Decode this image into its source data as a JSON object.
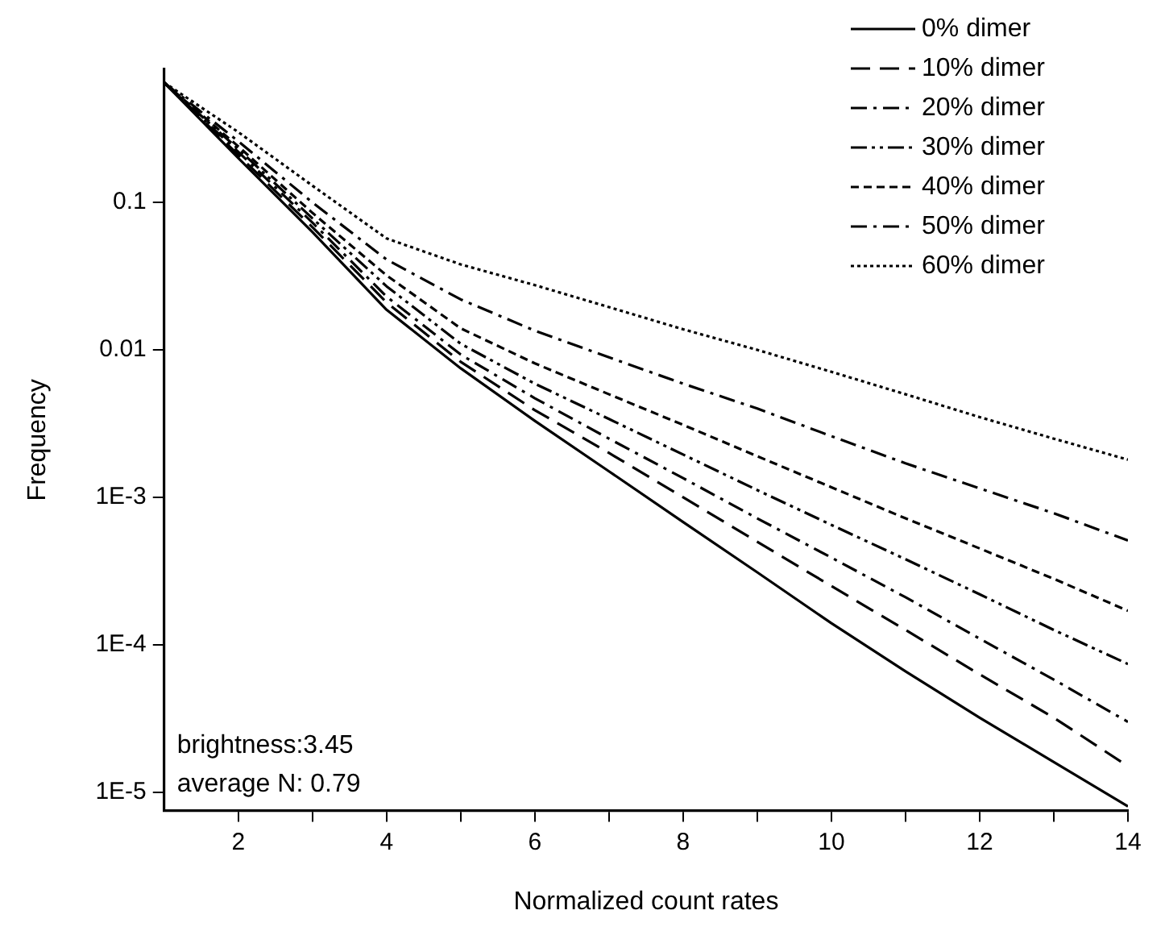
{
  "chart_data": {
    "type": "line",
    "xlabel": "Normalized count rates",
    "ylabel": "Frequency",
    "log": "y",
    "grid": false,
    "legend": "top right",
    "marker": "none",
    "x": [
      1,
      2,
      3,
      4,
      5,
      6,
      7,
      8,
      9,
      10,
      11,
      12,
      13,
      14
    ],
    "xlim": [
      1,
      14
    ],
    "xticks": [
      2,
      {
        "value": 3,
        "label": null
      },
      4,
      {
        "value": 5,
        "label": null
      },
      6,
      {
        "value": 7,
        "label": null
      },
      8,
      {
        "value": 9,
        "label": null
      },
      10,
      {
        "value": 11,
        "label": null
      },
      12,
      {
        "value": 13,
        "label": null
      },
      14
    ],
    "ylim": [
      7.5e-06,
      0.8
    ],
    "yticks": [
      {
        "value": 1e-05,
        "label": "1E-5"
      },
      {
        "value": 0.0001,
        "label": "1E-4"
      },
      {
        "value": 0.001,
        "label": "1E-3"
      },
      0.01,
      0.1
    ],
    "series": [
      {
        "name": "0% dimer",
        "color": "#000000",
        "line_style": "solid",
        "values": [
          0.65,
          0.2,
          0.063,
          0.0187,
          0.0075,
          0.0033,
          0.0015,
          0.00068,
          0.00031,
          0.00014,
          6.6e-05,
          3.2e-05,
          1.6e-05,
          8e-06
        ]
      },
      {
        "name": "10% dimer",
        "color": "#000000",
        "line_style": "dashed",
        "values": [
          0.65,
          0.21,
          0.068,
          0.021,
          0.0083,
          0.0039,
          0.002,
          0.001,
          0.0005,
          0.00025,
          0.000126,
          6.3e-05,
          3.2e-05,
          1.5e-05
        ]
      },
      {
        "name": "20% dimer",
        "color": "#000000",
        "line_style": "dashdot",
        "values": [
          0.65,
          0.22,
          0.073,
          0.023,
          0.0093,
          0.0047,
          0.0025,
          0.00135,
          0.00072,
          0.00039,
          0.00021,
          0.00011,
          5.8e-05,
          3e-05
        ]
      },
      {
        "name": "30% dimer",
        "color": "#000000",
        "line_style": "dashdotdot",
        "values": [
          0.65,
          0.23,
          0.078,
          0.027,
          0.011,
          0.0059,
          0.0034,
          0.00195,
          0.00112,
          0.00065,
          0.00038,
          0.00022,
          0.000126,
          7.4e-05
        ]
      },
      {
        "name": "40% dimer",
        "color": "#000000",
        "line_style": "shortdash",
        "values": [
          0.65,
          0.24,
          0.085,
          0.032,
          0.014,
          0.0081,
          0.005,
          0.0031,
          0.0019,
          0.00117,
          0.00072,
          0.00045,
          0.00028,
          0.00017
        ]
      },
      {
        "name": "50% dimer",
        "color": "#000000",
        "line_style": "dashdot",
        "values": [
          0.65,
          0.26,
          0.1,
          0.041,
          0.022,
          0.0135,
          0.0089,
          0.0059,
          0.004,
          0.0026,
          0.0017,
          0.00115,
          0.00078,
          0.00051
        ]
      },
      {
        "name": "60% dimer",
        "color": "#000000",
        "line_style": "dotted",
        "values": [
          0.65,
          0.3,
          0.13,
          0.057,
          0.038,
          0.0275,
          0.0195,
          0.0138,
          0.01,
          0.0071,
          0.005,
          0.0035,
          0.0025,
          0.0018
        ]
      }
    ],
    "annotations": [
      "brightness:3.45",
      "average N: 0.79"
    ]
  }
}
